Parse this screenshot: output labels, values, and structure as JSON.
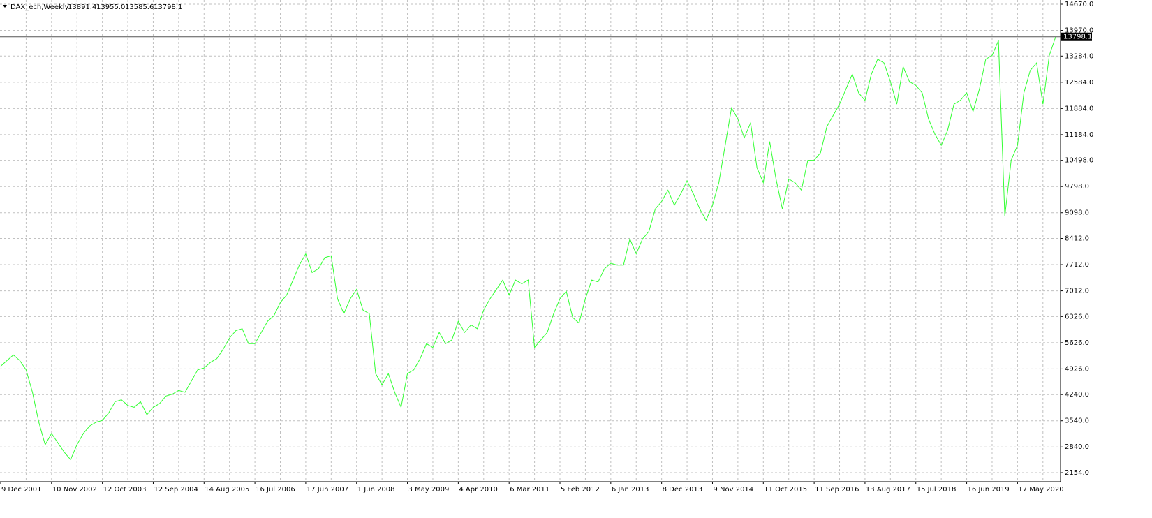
{
  "chart_data": {
    "type": "line",
    "title": "DAX_ech,Weekly",
    "ohlc": [
      "13891.4",
      "13955.0",
      "13585.6",
      "13798.1"
    ],
    "color": "#33ff33",
    "last_price": {
      "value": 13798.1,
      "label": "13798.1"
    },
    "categories": [
      "9 Dec 2001",
      null,
      null,
      null,
      null,
      null,
      null,
      null,
      "10 Nov 2002",
      null,
      null,
      null,
      null,
      null,
      null,
      null,
      "12 Oct 2003",
      null,
      null,
      null,
      null,
      null,
      null,
      null,
      "12 Sep 2004",
      null,
      null,
      null,
      null,
      null,
      null,
      null,
      "14 Aug 2005",
      null,
      null,
      null,
      null,
      null,
      null,
      null,
      "16 Jul 2006",
      null,
      null,
      null,
      null,
      null,
      null,
      null,
      "17 Jun 2007",
      null,
      null,
      null,
      null,
      null,
      null,
      null,
      "1 Jun 2008",
      null,
      null,
      null,
      null,
      null,
      null,
      null,
      "3 May 2009",
      null,
      null,
      null,
      null,
      null,
      null,
      null,
      "4 Apr 2010",
      null,
      null,
      null,
      null,
      null,
      null,
      null,
      "6 Mar 2011",
      null,
      null,
      null,
      null,
      null,
      null,
      null,
      "5 Feb 2012",
      null,
      null,
      null,
      null,
      null,
      null,
      null,
      "6 Jan 2013",
      null,
      null,
      null,
      null,
      null,
      null,
      null,
      "8 Dec 2013",
      null,
      null,
      null,
      null,
      null,
      null,
      null,
      "9 Nov 2014",
      null,
      null,
      null,
      null,
      null,
      null,
      null,
      "11 Oct 2015",
      null,
      null,
      null,
      null,
      null,
      null,
      null,
      "11 Sep 2016",
      null,
      null,
      null,
      null,
      null,
      null,
      null,
      "13 Aug 2017",
      null,
      null,
      null,
      null,
      null,
      null,
      null,
      "15 Jul 2018",
      null,
      null,
      null,
      null,
      null,
      null,
      null,
      "16 Jun 2019",
      null,
      null,
      null,
      null,
      null,
      null,
      null,
      "17 May 2020",
      null,
      null,
      null,
      null,
      null,
      null
    ],
    "values": [
      5000,
      5150,
      5300,
      5150,
      4900,
      4300,
      3500,
      2900,
      3200,
      2950,
      2700,
      2500,
      2900,
      3200,
      3400,
      3500,
      3550,
      3750,
      4050,
      4100,
      3950,
      3900,
      4050,
      3700,
      3900,
      4000,
      4200,
      4250,
      4350,
      4300,
      4600,
      4900,
      4950,
      5100,
      5200,
      5450,
      5750,
      5950,
      6000,
      5600,
      5600,
      5900,
      6200,
      6350,
      6700,
      6900,
      7300,
      7700,
      8000,
      7500,
      7600,
      7900,
      7950,
      6800,
      6400,
      6800,
      7050,
      6500,
      6400,
      4800,
      4500,
      4800,
      4300,
      3900,
      4800,
      4900,
      5200,
      5600,
      5500,
      5900,
      5600,
      5700,
      6200,
      5900,
      6100,
      6000,
      6500,
      6800,
      7050,
      7300,
      6900,
      7300,
      7200,
      7300,
      5500,
      5700,
      5900,
      6400,
      6800,
      7000,
      6300,
      6150,
      6800,
      7300,
      7250,
      7600,
      7750,
      7700,
      7700,
      8400,
      8000,
      8400,
      8600,
      9200,
      9400,
      9700,
      9300,
      9600,
      9950,
      9600,
      9200,
      8900,
      9300,
      9900,
      10900,
      11900,
      11600,
      11100,
      11500,
      10300,
      9900,
      11000,
      10000,
      9200,
      10000,
      9900,
      9700,
      10500,
      10500,
      10700,
      11400,
      11700,
      12000,
      12400,
      12800,
      12300,
      12100,
      12800,
      13200,
      13100,
      12600,
      12000,
      13000,
      12600,
      12500,
      12300,
      11600,
      11200,
      10900,
      11300,
      12000,
      12100,
      12300,
      11800,
      12400,
      13200,
      13300,
      13700,
      9000,
      10500,
      10900,
      12300,
      12900,
      13100,
      12000,
      13300,
      13798.1
    ],
    "ylim": [
      1912,
      14782
    ],
    "yticks": [
      {
        "value": 2154,
        "label": "2154.0"
      },
      {
        "value": 2840,
        "label": "2840.0"
      },
      {
        "value": 3540,
        "label": "3540.0"
      },
      {
        "value": 4240,
        "label": "4240.0"
      },
      {
        "value": 4926,
        "label": "4926.0"
      },
      {
        "value": 5626,
        "label": "5626.0"
      },
      {
        "value": 6326,
        "label": "6326.0"
      },
      {
        "value": 7012,
        "label": "7012.0"
      },
      {
        "value": 7712,
        "label": "7712.0"
      },
      {
        "value": 8412,
        "label": "8412.0"
      },
      {
        "value": 9098,
        "label": "9098.0"
      },
      {
        "value": 9798,
        "label": "9798.0"
      },
      {
        "value": 10498,
        "label": "10498.0"
      },
      {
        "value": 11184,
        "label": "11184.0"
      },
      {
        "value": 11884,
        "label": "11884.0"
      },
      {
        "value": 12584,
        "label": "12584.0"
      },
      {
        "value": 13284,
        "label": "13284.0"
      },
      {
        "value": 13970,
        "label": "13970.0"
      },
      {
        "value": 14670,
        "label": "14670.0"
      }
    ],
    "grid": true
  }
}
